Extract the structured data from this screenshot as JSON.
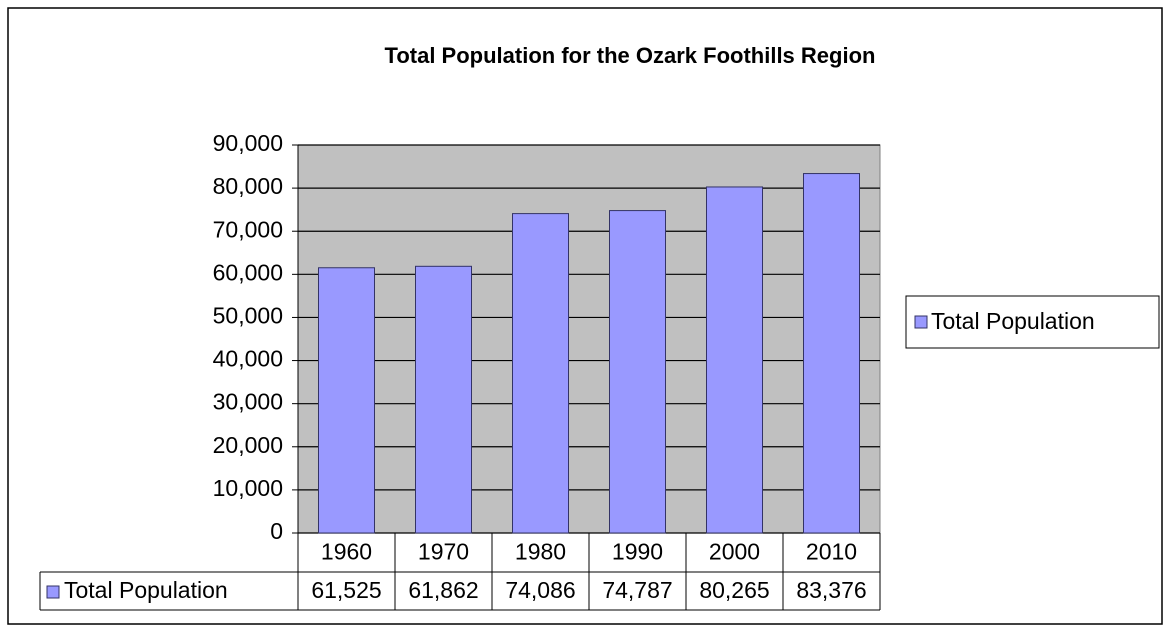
{
  "chart_data": {
    "type": "bar",
    "title": "Total Population for the Ozark Foothills Region",
    "categories": [
      "1960",
      "1970",
      "1980",
      "1990",
      "2000",
      "2010"
    ],
    "series": [
      {
        "name": "Total Population",
        "color": "#9999ff",
        "values": [
          61525,
          61862,
          74086,
          74787,
          80265,
          83376
        ],
        "value_labels": [
          "61,525",
          "61,862",
          "74,086",
          "74,787",
          "80,265",
          "83,376"
        ]
      }
    ],
    "ylim": [
      0,
      90000
    ],
    "yticks": [
      0,
      {
        "value": 10000,
        "label": "10,000"
      },
      {
        "value": 20000,
        "label": "20,000"
      },
      {
        "value": 30000,
        "label": "30,000"
      },
      {
        "value": 40000,
        "label": "40,000"
      },
      {
        "value": 50000,
        "label": "50,000"
      },
      {
        "value": 60000,
        "label": "60,000"
      },
      {
        "value": 70000,
        "label": "70,000"
      },
      {
        "value": 80000,
        "label": "80,000"
      },
      {
        "value": 90000,
        "label": "90,000"
      }
    ],
    "grid": true,
    "legend": "right",
    "plot_background": "#c0c0c0"
  }
}
